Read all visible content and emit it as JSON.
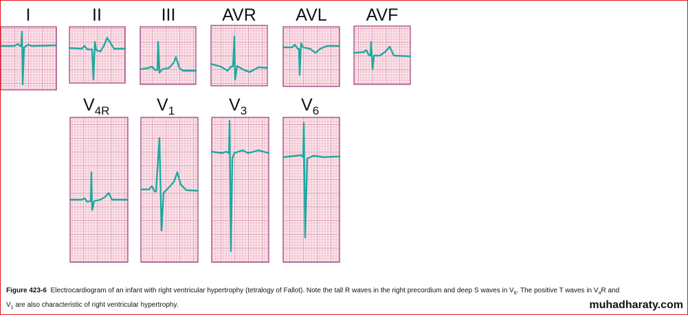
{
  "leads": [
    {
      "label": "I"
    },
    {
      "label": "II"
    },
    {
      "label": "III"
    },
    {
      "label": "AVR"
    },
    {
      "label": "AVL"
    },
    {
      "label": "AVF"
    },
    {
      "label": "V",
      "sub": "4R"
    },
    {
      "label": "V",
      "sub": "1"
    },
    {
      "label": "V",
      "sub": "3"
    },
    {
      "label": "V",
      "sub": "6"
    }
  ],
  "caption": {
    "label": "Figure 423-6",
    "text1": "Electrocardiogram of an infant with right ventricular hypertrophy (tetralogy of Fallot). Note the tall R waves in the right precordium and deep S waves in V",
    "sub1": "6",
    "text2": ". The positive T waves in V",
    "sub2": "4",
    "text3": "R and",
    "text4": "V",
    "sub3": "1",
    "text5": " are also characteristic of right ventricular hypertrophy."
  },
  "watermark": "muhadharaty.com"
}
